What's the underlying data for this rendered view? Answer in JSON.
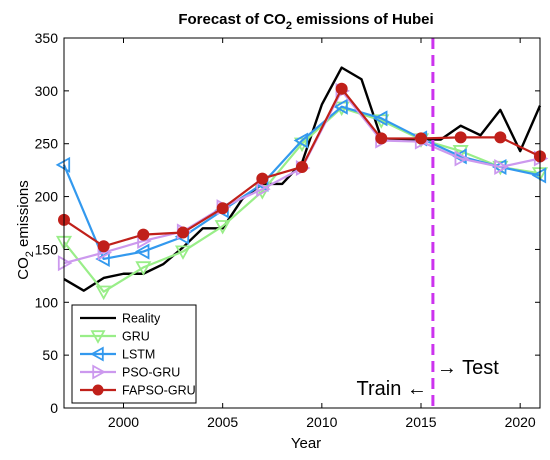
{
  "chart_data": {
    "type": "line",
    "title": "Forecast of CO2 emissions of Hubei",
    "title_parts": {
      "pre": "Forecast of CO",
      "sub": "2",
      "post": " emissions of Hubei"
    },
    "xlabel": "Year",
    "ylabel_parts": {
      "pre": "CO",
      "sub": "2",
      "post": " emissions"
    },
    "xlim": [
      1997,
      2021
    ],
    "ylim": [
      0,
      350
    ],
    "xticks": [
      2000,
      2005,
      2010,
      2015,
      2020
    ],
    "yticks": [
      0,
      50,
      100,
      150,
      200,
      250,
      300,
      350
    ],
    "grid": false,
    "legend_position": "bottom-left",
    "split_line": {
      "x": 2015.6,
      "color": "#cc33ee"
    },
    "annotations": {
      "train": "Train ←",
      "test": "→ Test"
    },
    "series": [
      {
        "name": "Reality",
        "color": "#000000",
        "marker": "none",
        "x": [
          1997,
          1998,
          1999,
          2000,
          2001,
          2002,
          2003,
          2004,
          2005,
          2006,
          2007,
          2008,
          2009,
          2010,
          2011,
          2012,
          2013,
          2014,
          2015,
          2016,
          2017,
          2018,
          2019,
          2020,
          2021
        ],
        "y": [
          122,
          111,
          123,
          127,
          127,
          136,
          152,
          170,
          170,
          198,
          212,
          212,
          232,
          287,
          322,
          311,
          255,
          254,
          254,
          254,
          267,
          258,
          282,
          243,
          286
        ]
      },
      {
        "name": "GRU",
        "color": "#99ee88",
        "marker": "triangle-down",
        "x": [
          1997,
          1999,
          2001,
          2003,
          2005,
          2007,
          2009,
          2011,
          2013,
          2015,
          2017,
          2019,
          2021
        ],
        "y": [
          157,
          110,
          133,
          148,
          172,
          205,
          250,
          284,
          272,
          254,
          243,
          228,
          222
        ]
      },
      {
        "name": "LSTM",
        "color": "#3399ee",
        "marker": "triangle-left",
        "x": [
          1997,
          1999,
          2001,
          2003,
          2005,
          2007,
          2009,
          2011,
          2013,
          2015,
          2017,
          2019,
          2021
        ],
        "y": [
          230,
          141,
          148,
          162,
          187,
          212,
          253,
          285,
          274,
          255,
          238,
          228,
          220
        ]
      },
      {
        "name": "PSO-GRU",
        "color": "#cc99ee",
        "marker": "triangle-right",
        "x": [
          1997,
          1999,
          2001,
          2003,
          2005,
          2007,
          2009,
          2011,
          2013,
          2015,
          2017,
          2019,
          2021
        ],
        "y": [
          137,
          147,
          158,
          167,
          190,
          207,
          227,
          300,
          253,
          252,
          236,
          228,
          236
        ]
      },
      {
        "name": "FAPSO-GRU",
        "color": "#c0201a",
        "marker": "circle",
        "x": [
          1997,
          1999,
          2001,
          2003,
          2005,
          2007,
          2009,
          2011,
          2013,
          2015,
          2017,
          2019,
          2021
        ],
        "y": [
          178,
          153,
          164,
          166,
          189,
          217,
          228,
          302,
          255,
          255,
          256,
          256,
          238
        ]
      }
    ]
  }
}
